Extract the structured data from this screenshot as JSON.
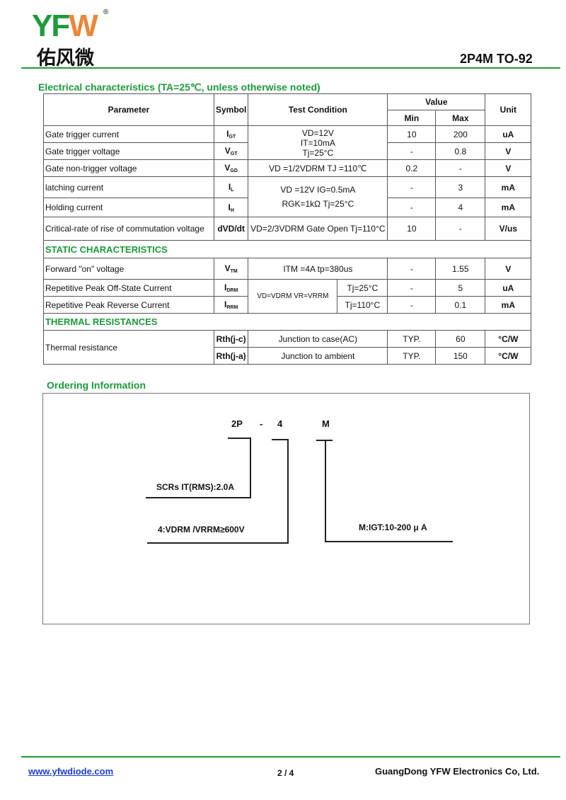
{
  "header": {
    "logo_latin": "YFW",
    "logo_cn": "佑风微",
    "registered": "®",
    "part": "2P4M TO-92"
  },
  "section_title": "Electrical characteristics (TA=25℃, unless otherwise noted)",
  "table": {
    "headers": {
      "parameter": "Parameter",
      "symbol": "Symbol",
      "test_condition": "Test Condition",
      "value": "Value",
      "min": "Min",
      "max": "Max",
      "unit": "Unit"
    },
    "rows": [
      {
        "param": "Gate trigger current",
        "sym": "I",
        "sub": "GT",
        "min": "10",
        "max": "200",
        "unit": "uA"
      },
      {
        "param": "Gate trigger voltage",
        "sym": "V",
        "sub": "GT",
        "min": "-",
        "max": "0.8",
        "unit": "V"
      },
      {
        "param": "Gate non-trigger voltage",
        "sym": "V",
        "sub": "GD",
        "cond": "VD =1/2VDRM TJ =110℃",
        "min": "0.2",
        "max": "-",
        "unit": "V"
      },
      {
        "param": "latching current",
        "sym": "I",
        "sub": "L",
        "min": "-",
        "max": "3",
        "unit": "mA"
      },
      {
        "param": "Holding current",
        "sym": "I",
        "sub": "H",
        "min": "-",
        "max": "4",
        "unit": "mA"
      },
      {
        "param": "Critical-rate of rise of commutation voltage",
        "sym": "dVD/dt",
        "cond": "VD=2/3VDRM Gate Open Tj=110°C",
        "min": "10",
        "max": "-",
        "unit": "V/us"
      }
    ],
    "cond_gate": [
      "VD=12V",
      "IT=10mA",
      "Tj=25°C"
    ],
    "cond_latch": [
      "VD =12V IG=0.5mA",
      "RGK=1kΩ Tj=25°C"
    ],
    "static_title": "STATIC CHARACTERISTICS",
    "static_rows": [
      {
        "param": "Forward \"on\" voltage",
        "sym": "V",
        "sub": "TM",
        "cond": "ITM =4A  tp=380us",
        "min": "-",
        "max": "1.55",
        "unit": "V"
      },
      {
        "param": "Repetitive Peak Off-State Current",
        "sym": "I",
        "sub": "DRM",
        "tj": "Tj=25°C",
        "min": "-",
        "max": "5",
        "unit": "uA"
      },
      {
        "param": "Repetitive Peak Reverse Current",
        "sym": "I",
        "sub": "RRM",
        "tj": "Tj=110°C",
        "min": "-",
        "max": "0.1",
        "unit": "mA"
      }
    ],
    "static_cond": "VD=VDRM VR=VRRM",
    "thermal_title": "THERMAL RESISTANCES",
    "thermal_param": "Thermal resistance",
    "thermal_rows": [
      {
        "sym": "Rth(j-c)",
        "cond": "Junction to case(AC)",
        "min": "TYP.",
        "max": "60",
        "unit": "°C/W"
      },
      {
        "sym": "Rth(j-a)",
        "cond": "Junction to ambient",
        "min": "TYP.",
        "max": "150",
        "unit": "°C/W"
      }
    ]
  },
  "ordering": {
    "title": "Ordering Information",
    "code": [
      "2P",
      "-",
      "4",
      "M"
    ],
    "label1": "SCRs IT(RMS):2.0A",
    "label2": "4:VDRM /VRRM≥600V",
    "label3": "M:IGT:10-200 μ A"
  },
  "footer": {
    "website": "www.yfwdiode.com",
    "page": "2 / 4",
    "company": "GuangDong YFW Electronics Co, Ltd."
  }
}
